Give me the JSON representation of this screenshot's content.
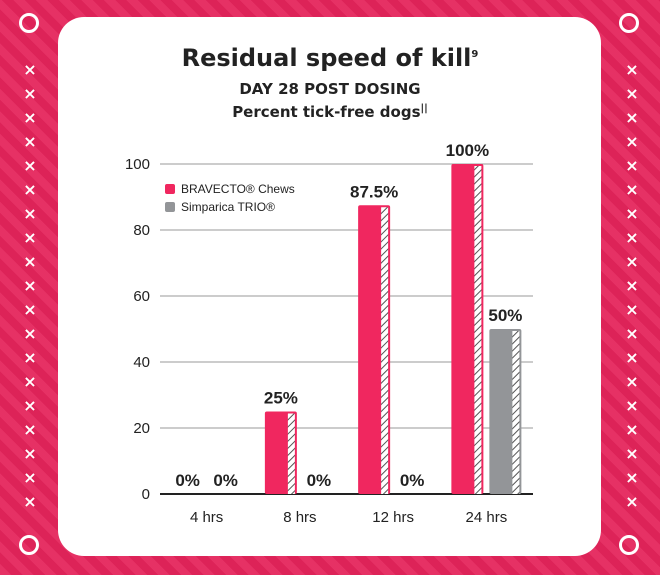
{
  "title": "Residual speed of kill",
  "title_sup": "9",
  "subtitle": "DAY 28 POST DOSING",
  "subtitle2": "Percent tick-free dogs",
  "subtitle2_sup": "||",
  "colors": {
    "background": "#e4245b",
    "bravecto": "#f0275f",
    "simparica": "#939598"
  },
  "chart_data": {
    "type": "bar",
    "categories": [
      "4 hrs",
      "8 hrs",
      "12 hrs",
      "24 hrs"
    ],
    "series": [
      {
        "name": "BRAVECTO® Chews",
        "values": [
          0,
          25,
          87.5,
          100
        ],
        "labels": [
          "0%",
          "25%",
          "87.5%",
          "100%"
        ],
        "color": "#f0275f"
      },
      {
        "name": "Simparica TRIO®",
        "values": [
          0,
          0,
          0,
          50
        ],
        "labels": [
          "0%",
          "0%",
          "0%",
          "50%"
        ],
        "color": "#939598"
      }
    ],
    "ylim": [
      0,
      100
    ],
    "yticks": [
      0,
      20,
      40,
      60,
      80,
      100
    ],
    "grid": true,
    "legend": "top-left"
  }
}
